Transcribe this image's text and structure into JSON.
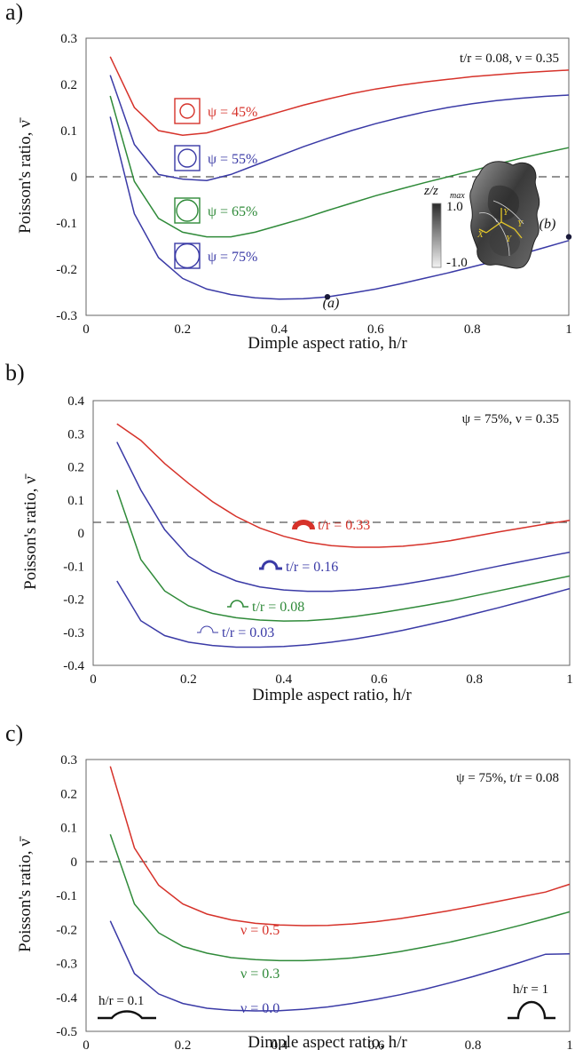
{
  "colors": {
    "red": "#d6322a",
    "blue": "#3a3aa6",
    "green": "#2f8a39",
    "axis": "#666666"
  },
  "chart_data": [
    {
      "panel": "a)",
      "type": "line",
      "xlabel": "Dimple aspect ratio, h/r",
      "ylabel": "Poisson's ratio, ν̄",
      "xlim": [
        0,
        1
      ],
      "ylim": [
        -0.3,
        0.3
      ],
      "xticks": [
        "0",
        "0.2",
        "0.4",
        "0.6",
        "0.8",
        "1"
      ],
      "yticks": [
        "0.3",
        "0.2",
        "0.1",
        "0",
        "-0.1",
        "-0.2",
        "-0.3"
      ],
      "note": "t/r = 0.08,  ν = 0.35",
      "zero_line": true,
      "x": [
        0.05,
        0.1,
        0.15,
        0.2,
        0.25,
        0.3,
        0.35,
        0.4,
        0.45,
        0.5,
        0.55,
        0.6,
        0.65,
        0.7,
        0.75,
        0.8,
        0.85,
        0.9,
        0.95,
        1.0
      ],
      "series": [
        {
          "name": "ψ = 45%",
          "color": "#d6322a",
          "values": [
            0.26,
            0.15,
            0.1,
            0.09,
            0.095,
            0.11,
            0.125,
            0.14,
            0.155,
            0.168,
            0.18,
            0.19,
            0.198,
            0.205,
            0.211,
            0.217,
            0.221,
            0.225,
            0.228,
            0.231
          ]
        },
        {
          "name": "ψ = 55%",
          "color": "#3a3aa6",
          "values": [
            0.22,
            0.07,
            0.005,
            -0.005,
            -0.008,
            0.005,
            0.025,
            0.045,
            0.065,
            0.083,
            0.1,
            0.115,
            0.128,
            0.14,
            0.15,
            0.158,
            0.165,
            0.17,
            0.174,
            0.177
          ]
        },
        {
          "name": "ψ = 65%",
          "color": "#2f8a39",
          "values": [
            0.175,
            -0.01,
            -0.09,
            -0.12,
            -0.13,
            -0.13,
            -0.12,
            -0.105,
            -0.09,
            -0.073,
            -0.057,
            -0.041,
            -0.027,
            -0.013,
            0.0,
            0.013,
            0.027,
            0.04,
            0.052,
            0.063
          ]
        },
        {
          "name": "ψ = 75%",
          "color": "#3a3aa6",
          "values": [
            0.13,
            -0.08,
            -0.175,
            -0.22,
            -0.243,
            -0.255,
            -0.262,
            -0.265,
            -0.264,
            -0.26,
            -0.252,
            -0.243,
            -0.232,
            -0.22,
            -0.208,
            -0.195,
            -0.182,
            -0.168,
            -0.153,
            -0.138
          ]
        }
      ],
      "points": [
        {
          "label": "(a)",
          "x": 0.5,
          "y": -0.26
        },
        {
          "label": "(b)",
          "x": 1.0,
          "y": -0.13
        }
      ],
      "colorbar": {
        "label": "z/z",
        "sub": "max",
        "max": "1.0",
        "min": "-1.0"
      },
      "inset_axes": [
        "Y",
        "Y",
        "X",
        "Y"
      ]
    },
    {
      "panel": "b)",
      "type": "line",
      "xlabel": "Dimple aspect ratio, h/r",
      "ylabel": "Poisson's ratio, ν̄",
      "xlim": [
        0,
        1
      ],
      "ylim": [
        -0.4,
        0.4
      ],
      "xticks": [
        "0",
        "0.2",
        "0.4",
        "0.6",
        "0.8",
        "1"
      ],
      "yticks": [
        "0.4",
        "0.3",
        "0.2",
        "0.1",
        "0",
        "-0.1",
        "-0.2",
        "-0.3",
        "-0.4"
      ],
      "note": "ψ = 75%,  ν = 0.35",
      "zero_line": true,
      "x": [
        0.05,
        0.1,
        0.15,
        0.2,
        0.25,
        0.3,
        0.35,
        0.4,
        0.45,
        0.5,
        0.55,
        0.6,
        0.65,
        0.7,
        0.75,
        0.8,
        0.85,
        0.9,
        0.95,
        1.0
      ],
      "series": [
        {
          "name": "t/r = 0.33",
          "color": "#d6322a",
          "values": [
            0.33,
            0.28,
            0.21,
            0.15,
            0.095,
            0.05,
            0.015,
            -0.01,
            -0.028,
            -0.038,
            -0.043,
            -0.043,
            -0.04,
            -0.033,
            -0.023,
            -0.01,
            0.003,
            0.015,
            0.027,
            0.038
          ]
        },
        {
          "name": "t/r = 0.16",
          "color": "#3a3aa6",
          "values": [
            0.275,
            0.13,
            0.01,
            -0.07,
            -0.115,
            -0.145,
            -0.163,
            -0.172,
            -0.176,
            -0.176,
            -0.172,
            -0.165,
            -0.155,
            -0.143,
            -0.13,
            -0.115,
            -0.1,
            -0.086,
            -0.072,
            -0.058
          ]
        },
        {
          "name": "t/r = 0.08",
          "color": "#2f8a39",
          "values": [
            0.13,
            -0.08,
            -0.175,
            -0.22,
            -0.243,
            -0.256,
            -0.263,
            -0.266,
            -0.265,
            -0.26,
            -0.252,
            -0.242,
            -0.23,
            -0.218,
            -0.205,
            -0.19,
            -0.175,
            -0.16,
            -0.145,
            -0.13
          ]
        },
        {
          "name": "t/r = 0.03",
          "color": "#3a3aa6",
          "values": [
            -0.145,
            -0.265,
            -0.31,
            -0.33,
            -0.34,
            -0.345,
            -0.345,
            -0.343,
            -0.338,
            -0.33,
            -0.32,
            -0.308,
            -0.294,
            -0.278,
            -0.262,
            -0.244,
            -0.226,
            -0.207,
            -0.188,
            -0.168
          ]
        }
      ]
    },
    {
      "panel": "c)",
      "type": "line",
      "xlabel": "Dimple aspect ratio, h/r",
      "ylabel": "Poisson's ratio, ν̄",
      "xlim": [
        0,
        1
      ],
      "ylim": [
        -0.5,
        0.3
      ],
      "xticks": [
        "0",
        "0.2",
        "0.4",
        "0.6",
        "0.8",
        "1"
      ],
      "yticks": [
        "0.3",
        "0.2",
        "0.1",
        "0",
        "-0.1",
        "-0.2",
        "-0.3",
        "-0.4",
        "-0.5"
      ],
      "note": "ψ = 75%,  t/r = 0.08",
      "zero_line": true,
      "x": [
        0.05,
        0.1,
        0.15,
        0.2,
        0.25,
        0.3,
        0.35,
        0.4,
        0.45,
        0.5,
        0.55,
        0.6,
        0.65,
        0.7,
        0.75,
        0.8,
        0.85,
        0.9,
        0.95,
        1.0
      ],
      "series": [
        {
          "name": "ν = 0.5",
          "color": "#d6322a",
          "values": [
            0.28,
            0.04,
            -0.07,
            -0.125,
            -0.155,
            -0.172,
            -0.182,
            -0.187,
            -0.189,
            -0.188,
            -0.184,
            -0.177,
            -0.168,
            -0.157,
            -0.145,
            -0.132,
            -0.118,
            -0.104,
            -0.09,
            -0.067
          ]
        },
        {
          "name": "ν = 0.3",
          "color": "#2f8a39",
          "values": [
            0.08,
            -0.125,
            -0.21,
            -0.25,
            -0.27,
            -0.283,
            -0.289,
            -0.292,
            -0.292,
            -0.289,
            -0.284,
            -0.276,
            -0.265,
            -0.252,
            -0.238,
            -0.222,
            -0.205,
            -0.187,
            -0.168,
            -0.148
          ]
        },
        {
          "name": "ν = 0.0",
          "color": "#3a3aa6",
          "values": [
            -0.175,
            -0.33,
            -0.39,
            -0.418,
            -0.432,
            -0.438,
            -0.44,
            -0.439,
            -0.435,
            -0.428,
            -0.418,
            -0.406,
            -0.392,
            -0.376,
            -0.358,
            -0.339,
            -0.318,
            -0.296,
            -0.273,
            -0.272
          ]
        }
      ],
      "annotations": [
        "h/r = 0.1",
        "h/r = 1"
      ]
    }
  ]
}
